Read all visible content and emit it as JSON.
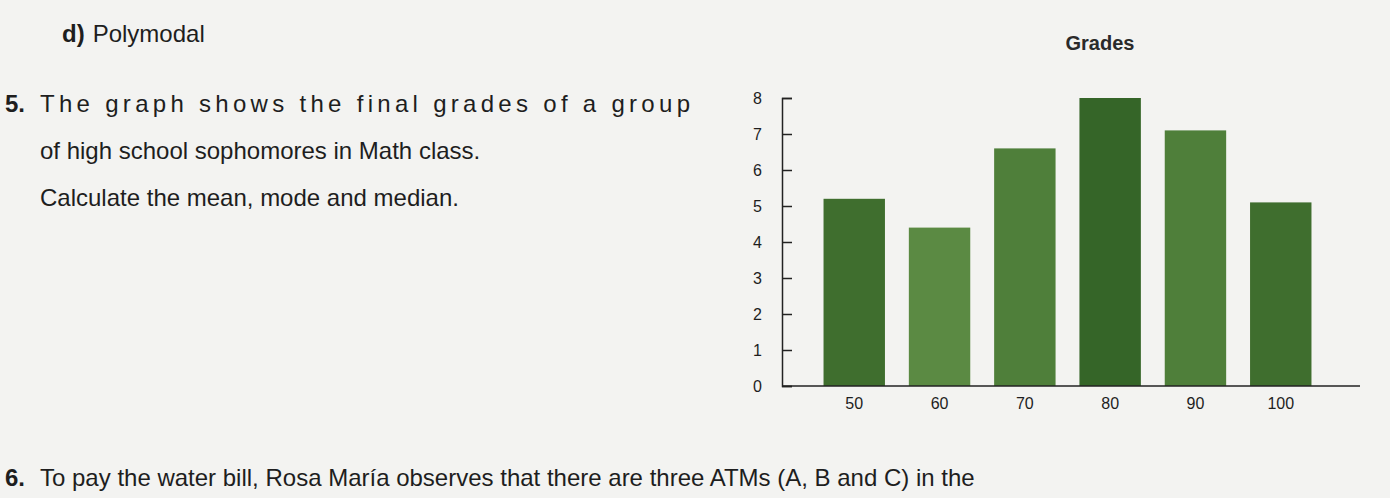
{
  "chart_data": {
    "type": "bar",
    "title": "Grades",
    "categories": [
      "50",
      "60",
      "70",
      "80",
      "90",
      "100"
    ],
    "values": [
      5.2,
      4.4,
      6.6,
      8.0,
      7.1,
      5.1
    ],
    "colors": [
      "#3f6e2e",
      "#5b8a43",
      "#4f7f3a",
      "#356528",
      "#4f7f3a",
      "#3f6e2e"
    ],
    "ylim": [
      0,
      8
    ],
    "yticks": [
      0,
      1,
      2,
      3,
      4,
      5,
      6,
      7,
      8
    ],
    "grid": false
  },
  "page": {
    "item_d": {
      "label": "d)",
      "text": "Polymodal"
    },
    "question_5": {
      "number": "5.",
      "lines": [
        "The graph shows the final grades of a group",
        "of high school sophomores in Math class.",
        "Calculate the mean, mode and median."
      ]
    },
    "question_6": {
      "number": "6.",
      "text": "To pay the water bill, Rosa María observes that there are three ATMs (A, B and C) in the"
    }
  }
}
